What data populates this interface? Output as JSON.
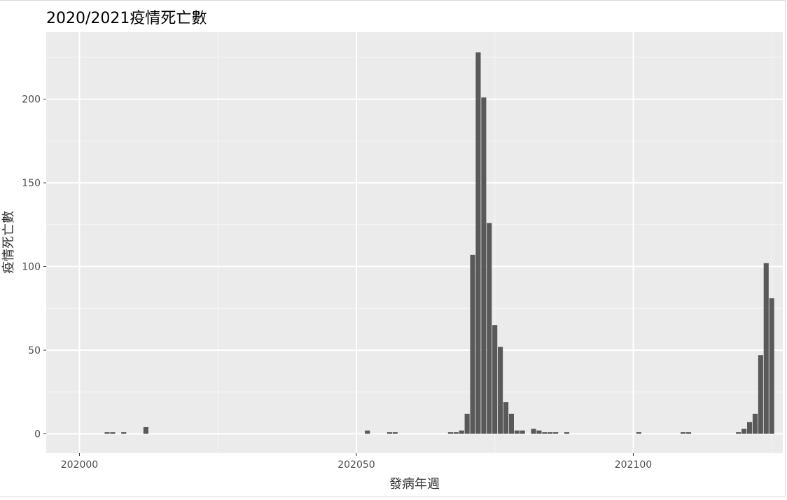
{
  "chart_data": {
    "type": "bar",
    "title": "2020/2021疫情死亡數",
    "xlabel": "發病年週",
    "ylabel": "疫情死亡數",
    "xlim": [
      201994,
      202127
    ],
    "ylim": [
      -11.5,
      240
    ],
    "x_ticks": [
      202000,
      202050,
      202100
    ],
    "y_ticks": [
      0,
      50,
      100,
      150,
      200
    ],
    "grid": true,
    "legend": "none",
    "colors": {
      "panel": "#ebebeb",
      "grid_major": "#ffffff",
      "grid_minor": "#f5f5f5",
      "bar": "#595959"
    },
    "data": [
      {
        "x": 202005,
        "y": 1
      },
      {
        "x": 202006,
        "y": 1
      },
      {
        "x": 202008,
        "y": 1
      },
      {
        "x": 202012,
        "y": 4
      },
      {
        "x": 202052,
        "y": 2
      },
      {
        "x": 202056,
        "y": 1
      },
      {
        "x": 202057,
        "y": 1
      },
      {
        "x": 202067,
        "y": 1
      },
      {
        "x": 202068,
        "y": 1
      },
      {
        "x": 202069,
        "y": 2
      },
      {
        "x": 202070,
        "y": 12
      },
      {
        "x": 202071,
        "y": 107
      },
      {
        "x": 202072,
        "y": 228
      },
      {
        "x": 202073,
        "y": 201
      },
      {
        "x": 202074,
        "y": 126
      },
      {
        "x": 202075,
        "y": 65
      },
      {
        "x": 202076,
        "y": 52
      },
      {
        "x": 202077,
        "y": 19
      },
      {
        "x": 202078,
        "y": 12
      },
      {
        "x": 202079,
        "y": 2
      },
      {
        "x": 202080,
        "y": 2
      },
      {
        "x": 202082,
        "y": 3
      },
      {
        "x": 202083,
        "y": 2
      },
      {
        "x": 202084,
        "y": 1
      },
      {
        "x": 202085,
        "y": 1
      },
      {
        "x": 202086,
        "y": 1
      },
      {
        "x": 202088,
        "y": 1
      },
      {
        "x": 202101,
        "y": 1
      },
      {
        "x": 202109,
        "y": 1
      },
      {
        "x": 202110,
        "y": 1
      },
      {
        "x": 202119,
        "y": 1
      },
      {
        "x": 202120,
        "y": 3
      },
      {
        "x": 202121,
        "y": 7
      },
      {
        "x": 202122,
        "y": 12
      },
      {
        "x": 202123,
        "y": 47
      },
      {
        "x": 202124,
        "y": 102
      },
      {
        "x": 202125,
        "y": 81
      }
    ]
  }
}
